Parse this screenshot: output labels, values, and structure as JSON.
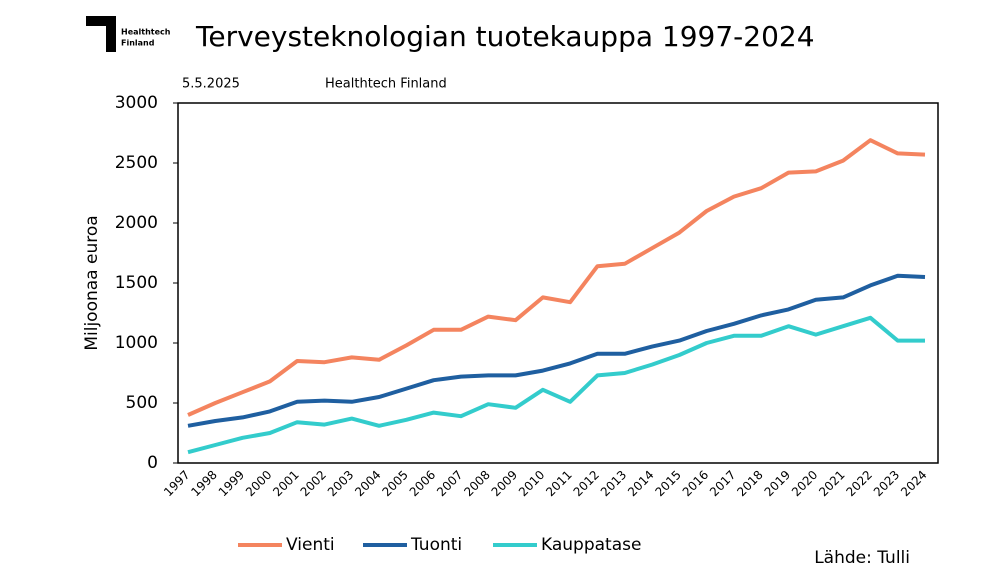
{
  "chart_data": {
    "type": "line",
    "title": "Terveysteknologian tuotekauppa 1997-2024",
    "logo_lines": [
      "Healthtech",
      "Finland"
    ],
    "date": "5.5.2025",
    "publisher": "Healthtech Finland",
    "source": "Lähde: Tulli",
    "ylabel": "Miljoonaa euroa",
    "categories": [
      "1997",
      "1998",
      "1999",
      "2000",
      "2001",
      "2002",
      "2003",
      "2004",
      "2005",
      "2006",
      "2007",
      "2008",
      "2009",
      "2010",
      "2011",
      "2012",
      "2013",
      "2014",
      "2015",
      "2016",
      "2017",
      "2018",
      "2019",
      "2020",
      "2021",
      "2022",
      "2023",
      "2024"
    ],
    "series": [
      {
        "name": "Vienti",
        "color": "#f4845f",
        "values": [
          400,
          500,
          590,
          680,
          850,
          840,
          880,
          860,
          980,
          1110,
          1110,
          1220,
          1190,
          1380,
          1340,
          1640,
          1660,
          1790,
          1920,
          2100,
          2220,
          2290,
          2420,
          2430,
          2520,
          2690,
          2580,
          2570
        ]
      },
      {
        "name": "Tuonti",
        "color": "#1f5fa0",
        "values": [
          310,
          350,
          380,
          430,
          510,
          520,
          510,
          550,
          620,
          690,
          720,
          730,
          730,
          770,
          830,
          910,
          910,
          970,
          1020,
          1100,
          1160,
          1230,
          1280,
          1360,
          1380,
          1480,
          1560,
          1550
        ]
      },
      {
        "name": "Kauppatase",
        "color": "#33cccc",
        "values": [
          90,
          150,
          210,
          250,
          340,
          320,
          370,
          310,
          360,
          420,
          390,
          490,
          460,
          610,
          510,
          730,
          750,
          820,
          900,
          1000,
          1060,
          1060,
          1140,
          1070,
          1140,
          1210,
          1020,
          1020
        ]
      }
    ],
    "ylim": [
      0,
      3000
    ],
    "yticks": [
      0,
      500,
      1000,
      1500,
      2000,
      2500,
      3000
    ],
    "grid": false
  }
}
